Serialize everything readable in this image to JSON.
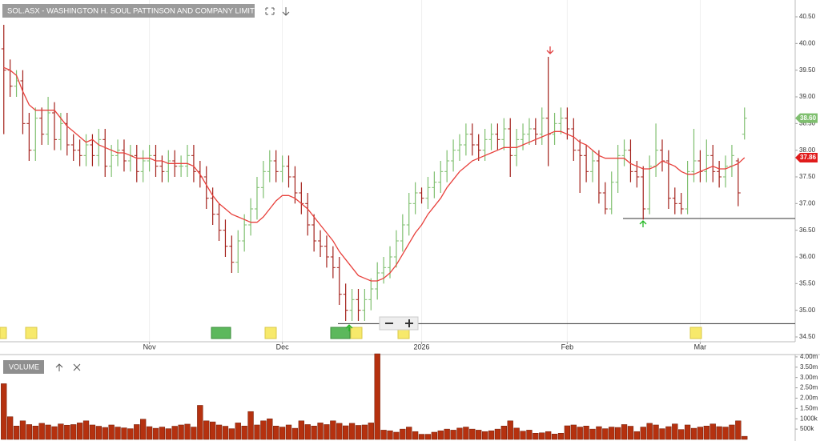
{
  "chart_data": [
    {
      "type": "ohlc",
      "title": "SOL.ASX - WASHINGTON H. SOUL PATTINSON AND COMPANY LIMITED",
      "up_color": "#7fbf6f",
      "down_color": "#a3201a",
      "ohlc": [
        [
          39.9,
          40.35,
          38.3,
          39.5
        ],
        [
          39.5,
          39.7,
          39.0,
          39.2
        ],
        [
          39.2,
          39.5,
          39.0,
          39.3
        ],
        [
          39.3,
          39.5,
          38.3,
          38.5
        ],
        [
          38.5,
          38.7,
          37.8,
          38.0
        ],
        [
          38.0,
          38.8,
          37.8,
          38.6
        ],
        [
          38.6,
          38.8,
          38.1,
          38.3
        ],
        [
          38.3,
          39.0,
          38.1,
          38.7
        ],
        [
          38.7,
          38.9,
          38.0,
          38.2
        ],
        [
          38.2,
          38.7,
          38.0,
          38.5
        ],
        [
          38.5,
          38.7,
          37.9,
          38.1
        ],
        [
          38.1,
          38.3,
          37.8,
          38.0
        ],
        [
          38.0,
          38.2,
          37.7,
          37.9
        ],
        [
          37.9,
          38.3,
          37.7,
          38.1
        ],
        [
          38.1,
          38.3,
          37.7,
          37.9
        ],
        [
          37.9,
          38.4,
          37.7,
          38.2
        ],
        [
          38.2,
          38.4,
          37.5,
          37.7
        ],
        [
          37.7,
          38.1,
          37.5,
          37.9
        ],
        [
          37.9,
          38.2,
          37.7,
          38.0
        ],
        [
          38.0,
          38.2,
          37.6,
          37.8
        ],
        [
          37.8,
          38.1,
          37.6,
          37.9
        ],
        [
          37.9,
          38.1,
          37.4,
          37.6
        ],
        [
          37.6,
          38.0,
          37.4,
          37.8
        ],
        [
          37.8,
          38.1,
          37.6,
          37.9
        ],
        [
          37.9,
          38.1,
          37.5,
          37.7
        ],
        [
          37.7,
          37.9,
          37.4,
          37.6
        ],
        [
          37.6,
          38.0,
          37.4,
          37.8
        ],
        [
          37.8,
          38.0,
          37.5,
          37.7
        ],
        [
          37.7,
          37.9,
          37.5,
          37.7
        ],
        [
          37.7,
          38.1,
          37.5,
          37.9
        ],
        [
          37.9,
          38.1,
          37.4,
          37.6
        ],
        [
          37.6,
          37.8,
          37.3,
          37.5
        ],
        [
          37.5,
          37.7,
          36.9,
          37.1
        ],
        [
          37.1,
          37.3,
          36.6,
          36.8
        ],
        [
          36.8,
          37.0,
          36.3,
          36.5
        ],
        [
          36.5,
          36.7,
          36.0,
          36.2
        ],
        [
          36.2,
          36.4,
          35.7,
          35.9
        ],
        [
          35.9,
          36.5,
          35.7,
          36.3
        ],
        [
          36.3,
          36.8,
          36.1,
          36.6
        ],
        [
          36.6,
          37.1,
          36.4,
          36.9
        ],
        [
          36.9,
          37.5,
          36.7,
          37.3
        ],
        [
          37.3,
          37.8,
          37.1,
          37.6
        ],
        [
          37.6,
          38.0,
          37.4,
          37.8
        ],
        [
          37.8,
          38.0,
          37.4,
          37.6
        ],
        [
          37.6,
          37.9,
          37.4,
          37.7
        ],
        [
          37.7,
          37.9,
          37.3,
          37.5
        ],
        [
          37.5,
          37.7,
          37.0,
          37.2
        ],
        [
          37.2,
          37.4,
          36.8,
          37.0
        ],
        [
          37.0,
          37.2,
          36.4,
          36.6
        ],
        [
          36.6,
          36.8,
          36.1,
          36.3
        ],
        [
          36.3,
          36.5,
          36.0,
          36.2
        ],
        [
          36.2,
          36.4,
          35.8,
          36.0
        ],
        [
          36.0,
          36.2,
          35.6,
          35.8
        ],
        [
          35.8,
          36.0,
          35.1,
          35.3
        ],
        [
          35.3,
          35.5,
          34.8,
          35.0
        ],
        [
          35.0,
          35.4,
          34.8,
          35.2
        ],
        [
          35.2,
          35.4,
          34.8,
          35.0
        ],
        [
          35.0,
          35.4,
          34.8,
          35.2
        ],
        [
          35.2,
          35.6,
          35.0,
          35.4
        ],
        [
          35.4,
          35.9,
          35.2,
          35.7
        ],
        [
          35.7,
          36.0,
          35.5,
          35.8
        ],
        [
          35.8,
          36.2,
          35.6,
          36.0
        ],
        [
          36.0,
          36.5,
          35.8,
          36.3
        ],
        [
          36.3,
          36.8,
          36.1,
          36.6
        ],
        [
          36.6,
          37.2,
          36.4,
          37.0
        ],
        [
          37.0,
          37.4,
          36.8,
          37.2
        ],
        [
          37.2,
          37.3,
          37.0,
          37.1
        ],
        [
          37.1,
          37.5,
          36.9,
          37.3
        ],
        [
          37.3,
          37.6,
          37.1,
          37.4
        ],
        [
          37.4,
          37.8,
          37.2,
          37.6
        ],
        [
          37.6,
          38.0,
          37.4,
          37.8
        ],
        [
          37.8,
          38.2,
          37.6,
          38.0
        ],
        [
          38.0,
          38.3,
          37.8,
          38.1
        ],
        [
          38.1,
          38.5,
          37.9,
          38.3
        ],
        [
          38.3,
          38.5,
          37.9,
          38.1
        ],
        [
          38.1,
          38.3,
          37.8,
          38.0
        ],
        [
          38.0,
          38.4,
          37.8,
          38.2
        ],
        [
          38.2,
          38.5,
          38.0,
          38.3
        ],
        [
          38.3,
          38.5,
          38.0,
          38.2
        ],
        [
          38.2,
          38.6,
          38.0,
          38.4
        ],
        [
          38.4,
          38.6,
          37.5,
          37.9
        ],
        [
          37.9,
          38.4,
          37.7,
          38.2
        ],
        [
          38.2,
          38.5,
          38.0,
          38.3
        ],
        [
          38.3,
          38.6,
          38.1,
          38.4
        ],
        [
          38.4,
          38.6,
          38.1,
          38.3
        ],
        [
          38.3,
          38.8,
          38.1,
          38.6
        ],
        [
          38.6,
          39.75,
          37.7,
          38.3
        ],
        [
          38.3,
          38.7,
          38.1,
          38.5
        ],
        [
          38.5,
          38.8,
          38.3,
          38.6
        ],
        [
          38.6,
          38.8,
          38.2,
          38.4
        ],
        [
          38.4,
          38.6,
          37.8,
          38.0
        ],
        [
          38.0,
          38.2,
          37.2,
          37.9
        ],
        [
          37.9,
          38.1,
          37.4,
          37.6
        ],
        [
          37.6,
          38.0,
          37.4,
          37.8
        ],
        [
          37.8,
          38.0,
          37.0,
          37.2
        ],
        [
          37.2,
          37.4,
          36.8,
          36.9
        ],
        [
          36.9,
          37.6,
          36.8,
          37.4
        ],
        [
          37.4,
          38.1,
          37.2,
          37.9
        ],
        [
          37.9,
          38.2,
          37.7,
          38.0
        ],
        [
          38.0,
          38.2,
          37.4,
          37.6
        ],
        [
          37.6,
          37.8,
          37.3,
          37.5
        ],
        [
          37.5,
          37.7,
          36.7,
          36.9
        ],
        [
          36.9,
          37.9,
          36.8,
          37.7
        ],
        [
          37.7,
          38.5,
          37.5,
          38.0
        ],
        [
          38.0,
          38.2,
          37.6,
          37.8
        ],
        [
          37.8,
          38.0,
          36.9,
          37.1
        ],
        [
          37.1,
          37.3,
          36.8,
          37.0
        ],
        [
          37.0,
          37.2,
          36.8,
          36.9
        ],
        [
          36.9,
          37.8,
          36.8,
          37.6
        ],
        [
          37.6,
          38.4,
          37.4,
          37.8
        ],
        [
          37.8,
          38.0,
          37.4,
          37.6
        ],
        [
          37.6,
          38.2,
          37.4,
          37.9
        ],
        [
          37.9,
          38.1,
          37.4,
          37.6
        ],
        [
          37.6,
          37.8,
          37.3,
          37.5
        ],
        [
          37.5,
          37.9,
          37.3,
          37.7
        ],
        [
          37.7,
          38.1,
          37.5,
          37.9
        ],
        [
          37.8,
          37.85,
          36.95,
          37.2
        ],
        [
          38.3,
          38.8,
          38.2,
          38.6
        ]
      ],
      "ma": {
        "color": "#e8413c",
        "values": [
          39.55,
          39.5,
          39.4,
          39.1,
          38.85,
          38.75,
          38.75,
          38.75,
          38.75,
          38.6,
          38.45,
          38.35,
          38.25,
          38.15,
          38.2,
          38.1,
          38.05,
          38.0,
          37.95,
          37.95,
          37.9,
          37.85,
          37.85,
          37.85,
          37.8,
          37.8,
          37.75,
          37.75,
          37.75,
          37.75,
          37.7,
          37.55,
          37.35,
          37.15,
          37.0,
          36.9,
          36.8,
          36.75,
          36.7,
          36.65,
          36.65,
          36.75,
          36.9,
          37.05,
          37.15,
          37.15,
          37.1,
          37.0,
          36.9,
          36.75,
          36.6,
          36.45,
          36.3,
          36.1,
          35.95,
          35.8,
          35.65,
          35.6,
          35.55,
          35.55,
          35.6,
          35.7,
          35.85,
          36.05,
          36.25,
          36.45,
          36.6,
          36.8,
          36.95,
          37.1,
          37.3,
          37.45,
          37.6,
          37.7,
          37.8,
          37.85,
          37.9,
          37.95,
          38.0,
          38.05,
          38.05,
          38.05,
          38.1,
          38.15,
          38.2,
          38.25,
          38.3,
          38.35,
          38.35,
          38.3,
          38.25,
          38.15,
          38.1,
          38.0,
          37.9,
          37.85,
          37.85,
          37.85,
          37.85,
          37.75,
          37.7,
          37.65,
          37.65,
          37.7,
          37.8,
          37.75,
          37.7,
          37.6,
          37.55,
          37.55,
          37.6,
          37.65,
          37.7,
          37.65,
          37.65,
          37.7,
          37.75,
          37.86
        ]
      },
      "xlim": [
        -0.6,
        125
      ],
      "xticks": [
        {
          "value": 23,
          "label": "Nov"
        },
        {
          "value": 44,
          "label": "Dec"
        },
        {
          "value": 66,
          "label": "2026"
        },
        {
          "value": 89,
          "label": "Feb"
        },
        {
          "value": 110,
          "label": "Mar"
        }
      ],
      "ylim": [
        34.41,
        40.815
      ],
      "yticks": [
        {
          "value": 34.5,
          "label": "34.50"
        },
        {
          "value": 35,
          "label": "35.00"
        },
        {
          "value": 35.5,
          "label": "35.50"
        },
        {
          "value": 36,
          "label": "36.00"
        },
        {
          "value": 36.5,
          "label": "36.50"
        },
        {
          "value": 37,
          "label": "37.00"
        },
        {
          "value": 37.5,
          "label": "37.50"
        },
        {
          "value": 38,
          "label": "38.00"
        },
        {
          "value": 38.5,
          "label": "38.50"
        },
        {
          "value": 39,
          "label": "39.00"
        },
        {
          "value": 39.5,
          "label": "39.50"
        },
        {
          "value": 40,
          "label": "40.00"
        },
        {
          "value": 40.5,
          "label": "40.50"
        }
      ],
      "price_tags": [
        {
          "value": 38.6,
          "label": "38.60",
          "color": "#7fbf6f"
        },
        {
          "value": 37.86,
          "label": "37.86",
          "color": "#e01b1b"
        }
      ],
      "hlines": [
        36.72,
        34.75
      ]
    },
    {
      "type": "bar",
      "title": "VOLUME",
      "color": "#b5310f",
      "values": [
        2700000,
        1100000,
        650000,
        900000,
        720000,
        650000,
        780000,
        700000,
        620000,
        750000,
        690000,
        720000,
        800000,
        900000,
        700000,
        640000,
        580000,
        700000,
        600000,
        560000,
        520000,
        720000,
        980000,
        620000,
        540000,
        600000,
        520000,
        640000,
        700000,
        740000,
        600000,
        1650000,
        900000,
        850000,
        700000,
        640000,
        520000,
        800000,
        650000,
        1350000,
        700000,
        900000,
        1000000,
        650000,
        600000,
        700000,
        540000,
        900000,
        720000,
        650000,
        800000,
        720000,
        900000,
        780000,
        660000,
        780000,
        680000,
        700000,
        800000,
        4150000,
        450000,
        420000,
        350000,
        500000,
        600000,
        380000,
        250000,
        250000,
        350000,
        420000,
        500000,
        450000,
        550000,
        600000,
        500000,
        450000,
        380000,
        420000,
        500000,
        650000,
        900000,
        550000,
        400000,
        450000,
        300000,
        320000,
        380000,
        260000,
        300000,
        660000,
        700000,
        600000,
        650000,
        500000,
        620000,
        520000,
        600000,
        580000,
        720000,
        640000,
        380000,
        600000,
        780000,
        700000,
        520000,
        620000,
        750000,
        480000,
        700000,
        540000,
        600000,
        650000,
        750000,
        620000,
        600000,
        700000,
        900000,
        150000
      ],
      "xlim": [
        -0.6,
        125
      ],
      "ylim": [
        0,
        4190000
      ],
      "yticks": [
        {
          "value": 500000,
          "label": "500k"
        },
        {
          "value": 1000000,
          "label": "1000k"
        },
        {
          "value": 1500000,
          "label": "1.50m"
        },
        {
          "value": 2000000,
          "label": "2.00m"
        },
        {
          "value": 2500000,
          "label": "2.50m"
        },
        {
          "value": 3000000,
          "label": "3.00m"
        },
        {
          "value": 3500000,
          "label": "3.50m"
        },
        {
          "value": 4000000,
          "label": "4.00m"
        }
      ]
    }
  ]
}
